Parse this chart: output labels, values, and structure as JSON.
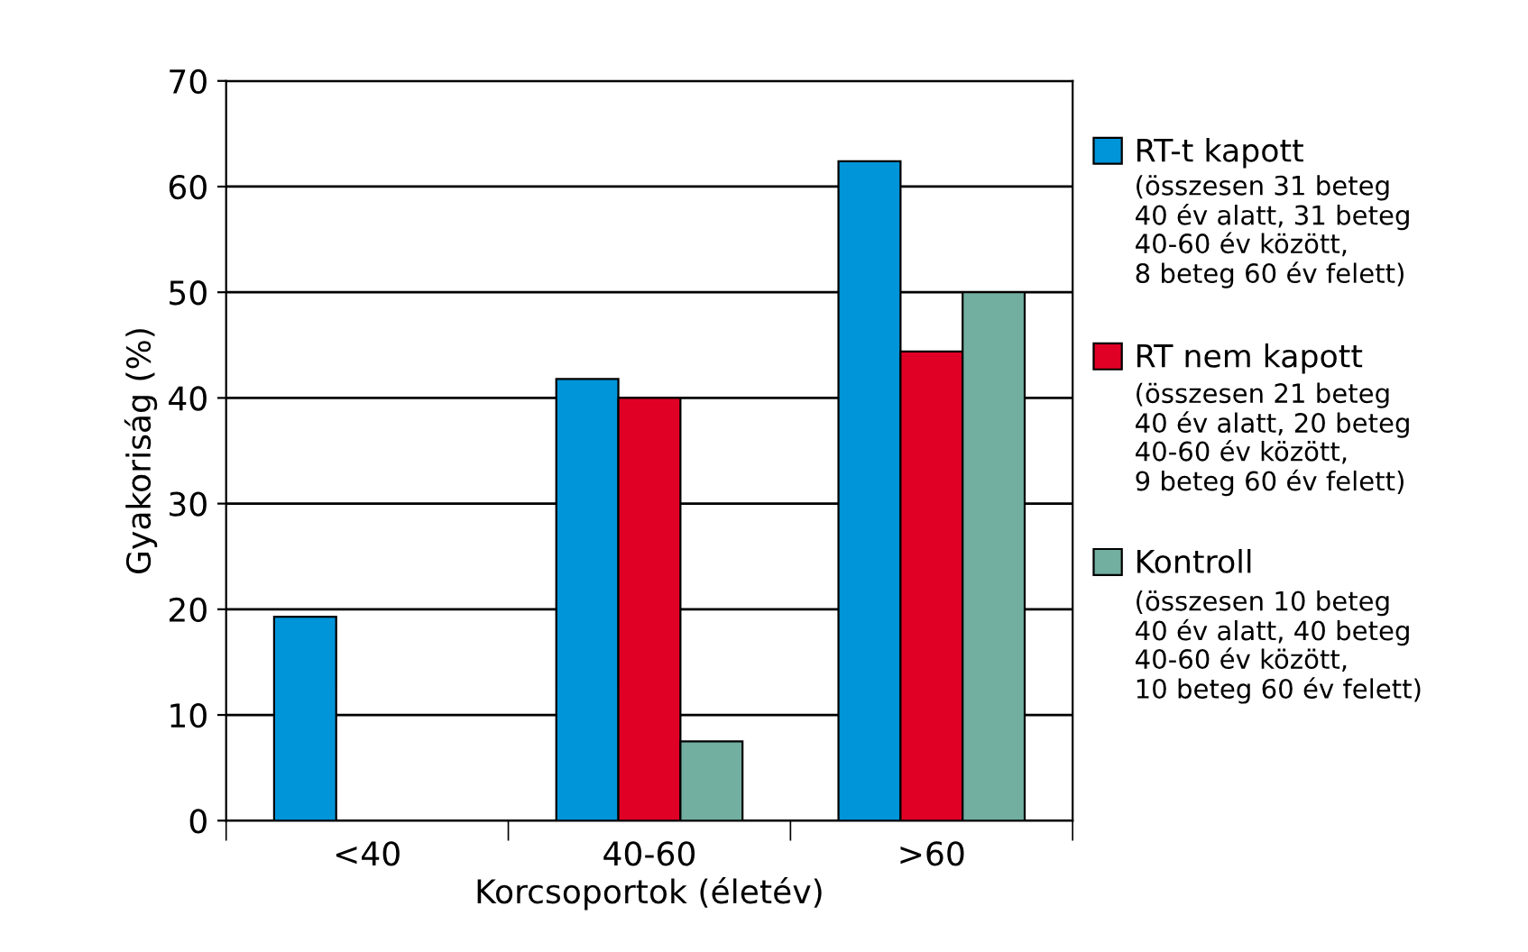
{
  "chart_data": {
    "type": "bar",
    "xlabel": "Korcsoportok (életév)",
    "ylabel": "Gyakoriság (%)",
    "categories": [
      "<40",
      "40-60",
      ">60"
    ],
    "series": [
      {
        "name": "RT-t kapott",
        "color": "#0095d9",
        "values": [
          19.3,
          41.8,
          62.4
        ]
      },
      {
        "name": "RT nem kapott",
        "color": "#e00025",
        "values": [
          null,
          40,
          44.4
        ]
      },
      {
        "name": "Kontroll",
        "color": "#72afa0",
        "values": [
          null,
          7.5,
          50
        ]
      }
    ],
    "annotations": [
      "(összesen 31 beteg\n40 év alatt, 31 beteg\n40-60 év között,\n8 beteg 60 év felett)",
      "(összesen 21 beteg\n40 év alatt, 20 beteg\n40-60 év között,\n9 beteg 60 év felett)",
      "(összesen 10 beteg\n40 év alatt, 40 beteg\n40-60 év között,\n10 beteg 60 év felett)"
    ],
    "ylim": [
      0,
      70
    ],
    "yticks": [
      0,
      10,
      20,
      30,
      40,
      50,
      60,
      70
    ],
    "grid": "y",
    "legend": "right"
  }
}
